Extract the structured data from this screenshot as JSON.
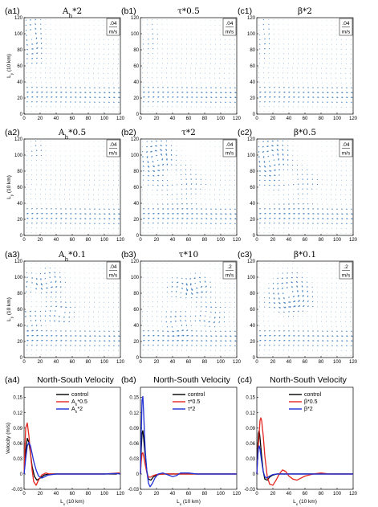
{
  "figure": {
    "quiver_panels": [
      {
        "id": "a1",
        "label": "(a1)",
        "title": "A",
        "title_sub": "h",
        "title_rest": "*2",
        "scale_value": ".04",
        "scale_unit": "m/s",
        "gyre": {
          "kind": "western",
          "cx": 10,
          "cy": 95,
          "rx": 9,
          "ry": 20,
          "speed": 0.9
        }
      },
      {
        "id": "b1",
        "label": "(b1)",
        "title": "τ*0.5",
        "title_sub": "",
        "title_rest": "",
        "scale_value": ".04",
        "scale_unit": "m/s",
        "gyre": {
          "kind": "weak",
          "cx": 10,
          "cy": 100,
          "rx": 8,
          "ry": 14,
          "speed": 0.35
        }
      },
      {
        "id": "c1",
        "label": "(c1)",
        "title": "β*2",
        "title_sub": "",
        "title_rest": "",
        "scale_value": ".04",
        "scale_unit": "m/s",
        "gyre": {
          "kind": "western",
          "cx": 8,
          "cy": 100,
          "rx": 6,
          "ry": 15,
          "speed": 0.55
        }
      },
      {
        "id": "a2",
        "label": "(a2)",
        "title": "A",
        "title_sub": "h",
        "title_rest": "*0.5",
        "scale_value": ".04",
        "scale_unit": "m/s",
        "gyre": {
          "kind": "eddy",
          "cx": 12,
          "cy": 108,
          "rx": 8,
          "ry": 8,
          "speed": 0.5
        }
      },
      {
        "id": "b2",
        "label": "(b2)",
        "title": "τ*2",
        "title_sub": "",
        "title_rest": "",
        "scale_value": ".04",
        "scale_unit": "m/s",
        "gyre": {
          "kind": "strong",
          "cx": 20,
          "cy": 95,
          "rx": 14,
          "ry": 16,
          "speed": 1.4
        }
      },
      {
        "id": "c2",
        "label": "(c2)",
        "title": "β*0.5",
        "title_sub": "",
        "title_rest": "",
        "scale_value": ".04",
        "scale_unit": "m/s",
        "gyre": {
          "kind": "strong",
          "cx": 18,
          "cy": 95,
          "rx": 15,
          "ry": 18,
          "speed": 1.3
        }
      },
      {
        "id": "a3",
        "label": "(a3)",
        "title": "A",
        "title_sub": "h",
        "title_rest": "*0.1",
        "scale_value": ".04",
        "scale_unit": "m/s",
        "gyre": {
          "kind": "eddies",
          "cx": 30,
          "cy": 95,
          "rx": 25,
          "ry": 22,
          "speed": 1.0
        }
      },
      {
        "id": "b3",
        "label": "(b3)",
        "title": "τ*10",
        "title_sub": "",
        "title_rest": "",
        "scale_value": ".2",
        "scale_unit": "m/s",
        "gyre": {
          "kind": "eddies",
          "cx": 70,
          "cy": 90,
          "rx": 25,
          "ry": 20,
          "speed": 1.2
        }
      },
      {
        "id": "c3",
        "label": "(c3)",
        "title": "β*0.1",
        "title_sub": "",
        "title_rest": "",
        "scale_value": ".2",
        "scale_unit": "m/s",
        "gyre": {
          "kind": "ring",
          "cx": 40,
          "cy": 78,
          "rx": 35,
          "ry": 35,
          "speed": 1.3
        }
      }
    ],
    "quiver_axes": {
      "ylabel": "L",
      "ylabel_sub": "y",
      "ylabel_rest": " (10 km)",
      "xticks": [
        "0",
        "20",
        "40",
        "60",
        "80",
        "100",
        "120"
      ],
      "yticks": [
        "0",
        "20",
        "40",
        "60",
        "80",
        "100",
        "120"
      ]
    },
    "velocity_panels": [
      {
        "id": "a4",
        "label": "(a4)",
        "title": "North-South Velocity",
        "legend": [
          {
            "text": "control",
            "sub": "",
            "rest": ""
          },
          {
            "text": "A",
            "sub": "h",
            "rest": "*0.5"
          },
          {
            "text": "A",
            "sub": "h",
            "rest": "*2"
          }
        ]
      },
      {
        "id": "b4",
        "label": "(b4)",
        "title": "North-South Velocity",
        "legend": [
          {
            "text": "control",
            "sub": "",
            "rest": ""
          },
          {
            "text": "τ*0.5",
            "sub": "",
            "rest": ""
          },
          {
            "text": "τ*2",
            "sub": "",
            "rest": ""
          }
        ]
      },
      {
        "id": "c4",
        "label": "(c4)",
        "title": "North-South Velocity",
        "legend": [
          {
            "text": "control",
            "sub": "",
            "rest": ""
          },
          {
            "text": "β*0.5",
            "sub": "",
            "rest": ""
          },
          {
            "text": "β*2",
            "sub": "",
            "rest": ""
          }
        ]
      }
    ],
    "velocity_axes": {
      "ylabel": "Velocity (m/s)",
      "xlabel": "L",
      "xlabel_sub": "x",
      "xlabel_rest": " (10 km)",
      "xticks": [
        "0",
        "20",
        "40",
        "60",
        "80",
        "100",
        "120"
      ],
      "yticks": [
        "-0.03",
        "0",
        "0.03",
        "0.06",
        "0.09",
        "0.12",
        "0.15"
      ]
    }
  },
  "chart_data": [
    {
      "type": "scatter",
      "subtype": "quiver",
      "panel": "(a1)",
      "title": "A_h*2",
      "ylabel": "L_y (10 km)",
      "xlim": [
        0,
        120
      ],
      "ylim": [
        0,
        120
      ],
      "scale_arrow": ".04 m/s",
      "gyre_center": [
        10,
        95
      ]
    },
    {
      "type": "scatter",
      "subtype": "quiver",
      "panel": "(b1)",
      "title": "τ*0.5",
      "xlim": [
        0,
        120
      ],
      "ylim": [
        0,
        120
      ],
      "scale_arrow": ".04 m/s",
      "gyre_center": [
        10,
        100
      ]
    },
    {
      "type": "scatter",
      "subtype": "quiver",
      "panel": "(c1)",
      "title": "β*2",
      "xlim": [
        0,
        120
      ],
      "ylim": [
        0,
        120
      ],
      "scale_arrow": ".04 m/s",
      "gyre_center": [
        8,
        100
      ]
    },
    {
      "type": "scatter",
      "subtype": "quiver",
      "panel": "(a2)",
      "title": "A_h*0.5",
      "ylabel": "L_y (10 km)",
      "xlim": [
        0,
        120
      ],
      "ylim": [
        0,
        120
      ],
      "scale_arrow": ".04 m/s",
      "gyre_center": [
        12,
        108
      ]
    },
    {
      "type": "scatter",
      "subtype": "quiver",
      "panel": "(b2)",
      "title": "τ*2",
      "xlim": [
        0,
        120
      ],
      "ylim": [
        0,
        120
      ],
      "scale_arrow": ".04 m/s",
      "gyre_center": [
        20,
        95
      ]
    },
    {
      "type": "scatter",
      "subtype": "quiver",
      "panel": "(c2)",
      "title": "β*0.5",
      "xlim": [
        0,
        120
      ],
      "ylim": [
        0,
        120
      ],
      "scale_arrow": ".04 m/s",
      "gyre_center": [
        18,
        95
      ]
    },
    {
      "type": "scatter",
      "subtype": "quiver",
      "panel": "(a3)",
      "title": "A_h*0.1",
      "ylabel": "L_y (10 km)",
      "xlim": [
        0,
        120
      ],
      "ylim": [
        0,
        120
      ],
      "scale_arrow": ".04 m/s",
      "gyre_center": [
        30,
        95
      ]
    },
    {
      "type": "scatter",
      "subtype": "quiver",
      "panel": "(b3)",
      "title": "τ*10",
      "xlim": [
        0,
        120
      ],
      "ylim": [
        0,
        120
      ],
      "scale_arrow": ".2 m/s",
      "gyre_center": [
        70,
        90
      ]
    },
    {
      "type": "scatter",
      "subtype": "quiver",
      "panel": "(c3)",
      "title": "β*0.1",
      "xlim": [
        0,
        120
      ],
      "ylim": [
        0,
        120
      ],
      "scale_arrow": ".2 m/s",
      "gyre_center": [
        40,
        78
      ]
    },
    {
      "type": "line",
      "panel": "(a4)",
      "title": "North-South Velocity",
      "xlabel": "L_x (10 km)",
      "ylabel": "Velocity (m/s)",
      "xlim": [
        0,
        120
      ],
      "ylim": [
        -0.03,
        0.17
      ],
      "series": [
        {
          "name": "control",
          "color": "#000000",
          "x": [
            0,
            2,
            4,
            6,
            8,
            10,
            13,
            16,
            20,
            25,
            30,
            40,
            60,
            80,
            100,
            115,
            118,
            120
          ],
          "y": [
            0,
            0.045,
            0.07,
            0.062,
            0.04,
            0.015,
            -0.005,
            -0.012,
            -0.008,
            -0.002,
            0,
            0,
            0,
            0,
            0,
            0,
            0.002,
            0
          ]
        },
        {
          "name": "A_h*0.5",
          "color": "#e3261f",
          "x": [
            0,
            1,
            2,
            4,
            6,
            8,
            10,
            12,
            15,
            18,
            22,
            27,
            32,
            40,
            60,
            80,
            100,
            118,
            120
          ],
          "y": [
            0,
            0.05,
            0.09,
            0.1,
            0.075,
            0.04,
            0.008,
            -0.015,
            -0.022,
            -0.012,
            -0.002,
            0.002,
            0,
            0,
            0,
            0,
            0,
            0.002,
            0
          ]
        },
        {
          "name": "A_h*2",
          "color": "#1f2fd6",
          "x": [
            0,
            2,
            4,
            6,
            8,
            10,
            12,
            15,
            18,
            22,
            26,
            30,
            40,
            60,
            80,
            100,
            115,
            120
          ],
          "y": [
            0,
            0.03,
            0.055,
            0.062,
            0.055,
            0.04,
            0.025,
            0.008,
            -0.004,
            -0.008,
            -0.005,
            -0.002,
            0,
            0,
            0,
            0,
            0.001,
            0
          ]
        }
      ]
    },
    {
      "type": "line",
      "panel": "(b4)",
      "title": "North-South Velocity",
      "xlabel": "L_x (10 km)",
      "xlim": [
        0,
        120
      ],
      "ylim": [
        -0.03,
        0.17
      ],
      "series": [
        {
          "name": "control",
          "color": "#000000",
          "x": [
            0,
            1,
            2,
            3,
            4,
            6,
            8,
            10,
            13,
            16,
            20,
            25,
            30,
            40,
            60,
            80,
            100,
            120
          ],
          "y": [
            0,
            0.05,
            0.08,
            0.085,
            0.07,
            0.035,
            0.005,
            -0.01,
            -0.012,
            -0.006,
            -0.002,
            0,
            0,
            0,
            0,
            0,
            0,
            0
          ]
        },
        {
          "name": "τ*0.5",
          "color": "#e3261f",
          "x": [
            0,
            1,
            2,
            3,
            4,
            6,
            8,
            10,
            13,
            16,
            20,
            30,
            40,
            60,
            80,
            100,
            120
          ],
          "y": [
            0,
            0.025,
            0.04,
            0.042,
            0.035,
            0.018,
            0.002,
            -0.006,
            -0.006,
            -0.003,
            -0.001,
            0,
            0,
            0,
            0,
            0,
            0
          ]
        },
        {
          "name": "τ*2",
          "color": "#1f2fd6",
          "x": [
            0,
            1,
            2,
            3,
            4,
            5,
            6,
            8,
            10,
            12,
            15,
            18,
            22,
            28,
            35,
            40,
            45,
            50,
            60,
            70,
            80,
            100,
            120
          ],
          "y": [
            0,
            0.08,
            0.145,
            0.152,
            0.12,
            0.08,
            0.045,
            0.005,
            -0.018,
            -0.025,
            -0.018,
            -0.008,
            0,
            0.002,
            -0.002,
            -0.005,
            -0.003,
            0.002,
            0.002,
            0,
            0,
            0,
            0
          ]
        }
      ]
    },
    {
      "type": "line",
      "panel": "(c4)",
      "title": "North-South Velocity",
      "xlabel": "L_x (10 km)",
      "xlim": [
        0,
        120
      ],
      "ylim": [
        -0.03,
        0.17
      ],
      "series": [
        {
          "name": "control",
          "color": "#000000",
          "x": [
            0,
            1,
            2,
            3,
            4,
            6,
            8,
            10,
            13,
            16,
            20,
            25,
            30,
            40,
            60,
            80,
            100,
            120
          ],
          "y": [
            0,
            0.05,
            0.08,
            0.085,
            0.07,
            0.035,
            0.005,
            -0.01,
            -0.012,
            -0.006,
            -0.002,
            0,
            0,
            0,
            0,
            0,
            0,
            0
          ]
        },
        {
          "name": "β*0.5",
          "color": "#e3261f",
          "x": [
            0,
            2,
            4,
            5,
            6,
            8,
            10,
            13,
            16,
            20,
            24,
            28,
            32,
            36,
            40,
            45,
            50,
            55,
            60,
            70,
            80,
            90,
            100,
            110,
            120
          ],
          "y": [
            0,
            0.06,
            0.105,
            0.11,
            0.105,
            0.075,
            0.035,
            -0.005,
            -0.02,
            -0.022,
            -0.012,
            0,
            0.008,
            0.005,
            -0.004,
            -0.01,
            -0.012,
            -0.008,
            -0.004,
            0,
            0.002,
            0,
            0,
            0,
            0
          ]
        },
        {
          "name": "β*2",
          "color": "#1f2fd6",
          "x": [
            0,
            1,
            2,
            3,
            4,
            6,
            8,
            10,
            12,
            15,
            20,
            25,
            30,
            40,
            60,
            80,
            100,
            120
          ],
          "y": [
            0,
            0.03,
            0.05,
            0.055,
            0.048,
            0.025,
            0.005,
            -0.005,
            -0.008,
            -0.005,
            -0.001,
            0,
            0,
            0,
            0,
            0,
            0,
            0
          ]
        }
      ]
    }
  ]
}
